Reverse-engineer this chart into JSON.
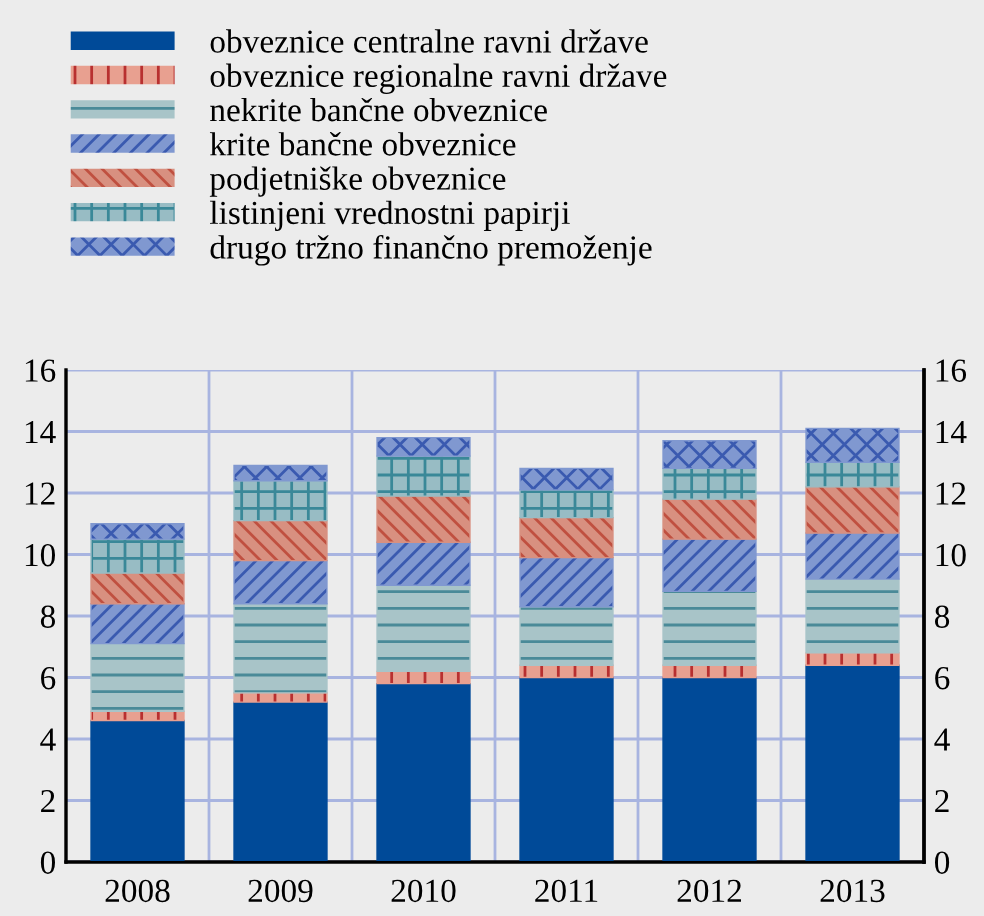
{
  "chart_data": {
    "type": "bar",
    "stacked": true,
    "categories": [
      "2008",
      "2009",
      "2010",
      "2011",
      "2012",
      "2013"
    ],
    "series": [
      {
        "name": "obveznice centralne ravni države",
        "color": "#004a98",
        "values": [
          4.6,
          5.2,
          5.8,
          6.0,
          6.0,
          6.4
        ]
      },
      {
        "name": "obveznice regionalne ravni države",
        "color": "#e8a090",
        "values": [
          0.3,
          0.3,
          0.4,
          0.4,
          0.4,
          0.4
        ]
      },
      {
        "name": "nekrite bančne obveznice",
        "color": "#a8c4c8",
        "values": [
          2.2,
          2.9,
          2.8,
          1.9,
          2.4,
          2.4
        ]
      },
      {
        "name": "krite bančne obveznice",
        "color": "#8098d0",
        "values": [
          1.3,
          1.4,
          1.4,
          1.6,
          1.7,
          1.5
        ]
      },
      {
        "name": "podjetniške obveznice",
        "color": "#d89080",
        "values": [
          1.0,
          1.3,
          1.5,
          1.3,
          1.3,
          1.5
        ]
      },
      {
        "name": "listinjeni vrednostni papirji",
        "color": "#98bcc4",
        "values": [
          1.1,
          1.3,
          1.3,
          0.9,
          1.0,
          0.8
        ]
      },
      {
        "name": "drugo tržno finančno premoženje",
        "color": "#8098d0",
        "values": [
          0.5,
          0.5,
          0.6,
          0.7,
          0.9,
          1.1
        ]
      }
    ],
    "ylim": [
      0,
      16
    ],
    "yticks": [
      0,
      2,
      4,
      6,
      8,
      10,
      12,
      14,
      16
    ],
    "y2lim": [
      0,
      16
    ],
    "y2ticks": [
      0,
      2,
      4,
      6,
      8,
      10,
      12,
      14,
      16
    ],
    "grid": true,
    "legend": "top"
  }
}
